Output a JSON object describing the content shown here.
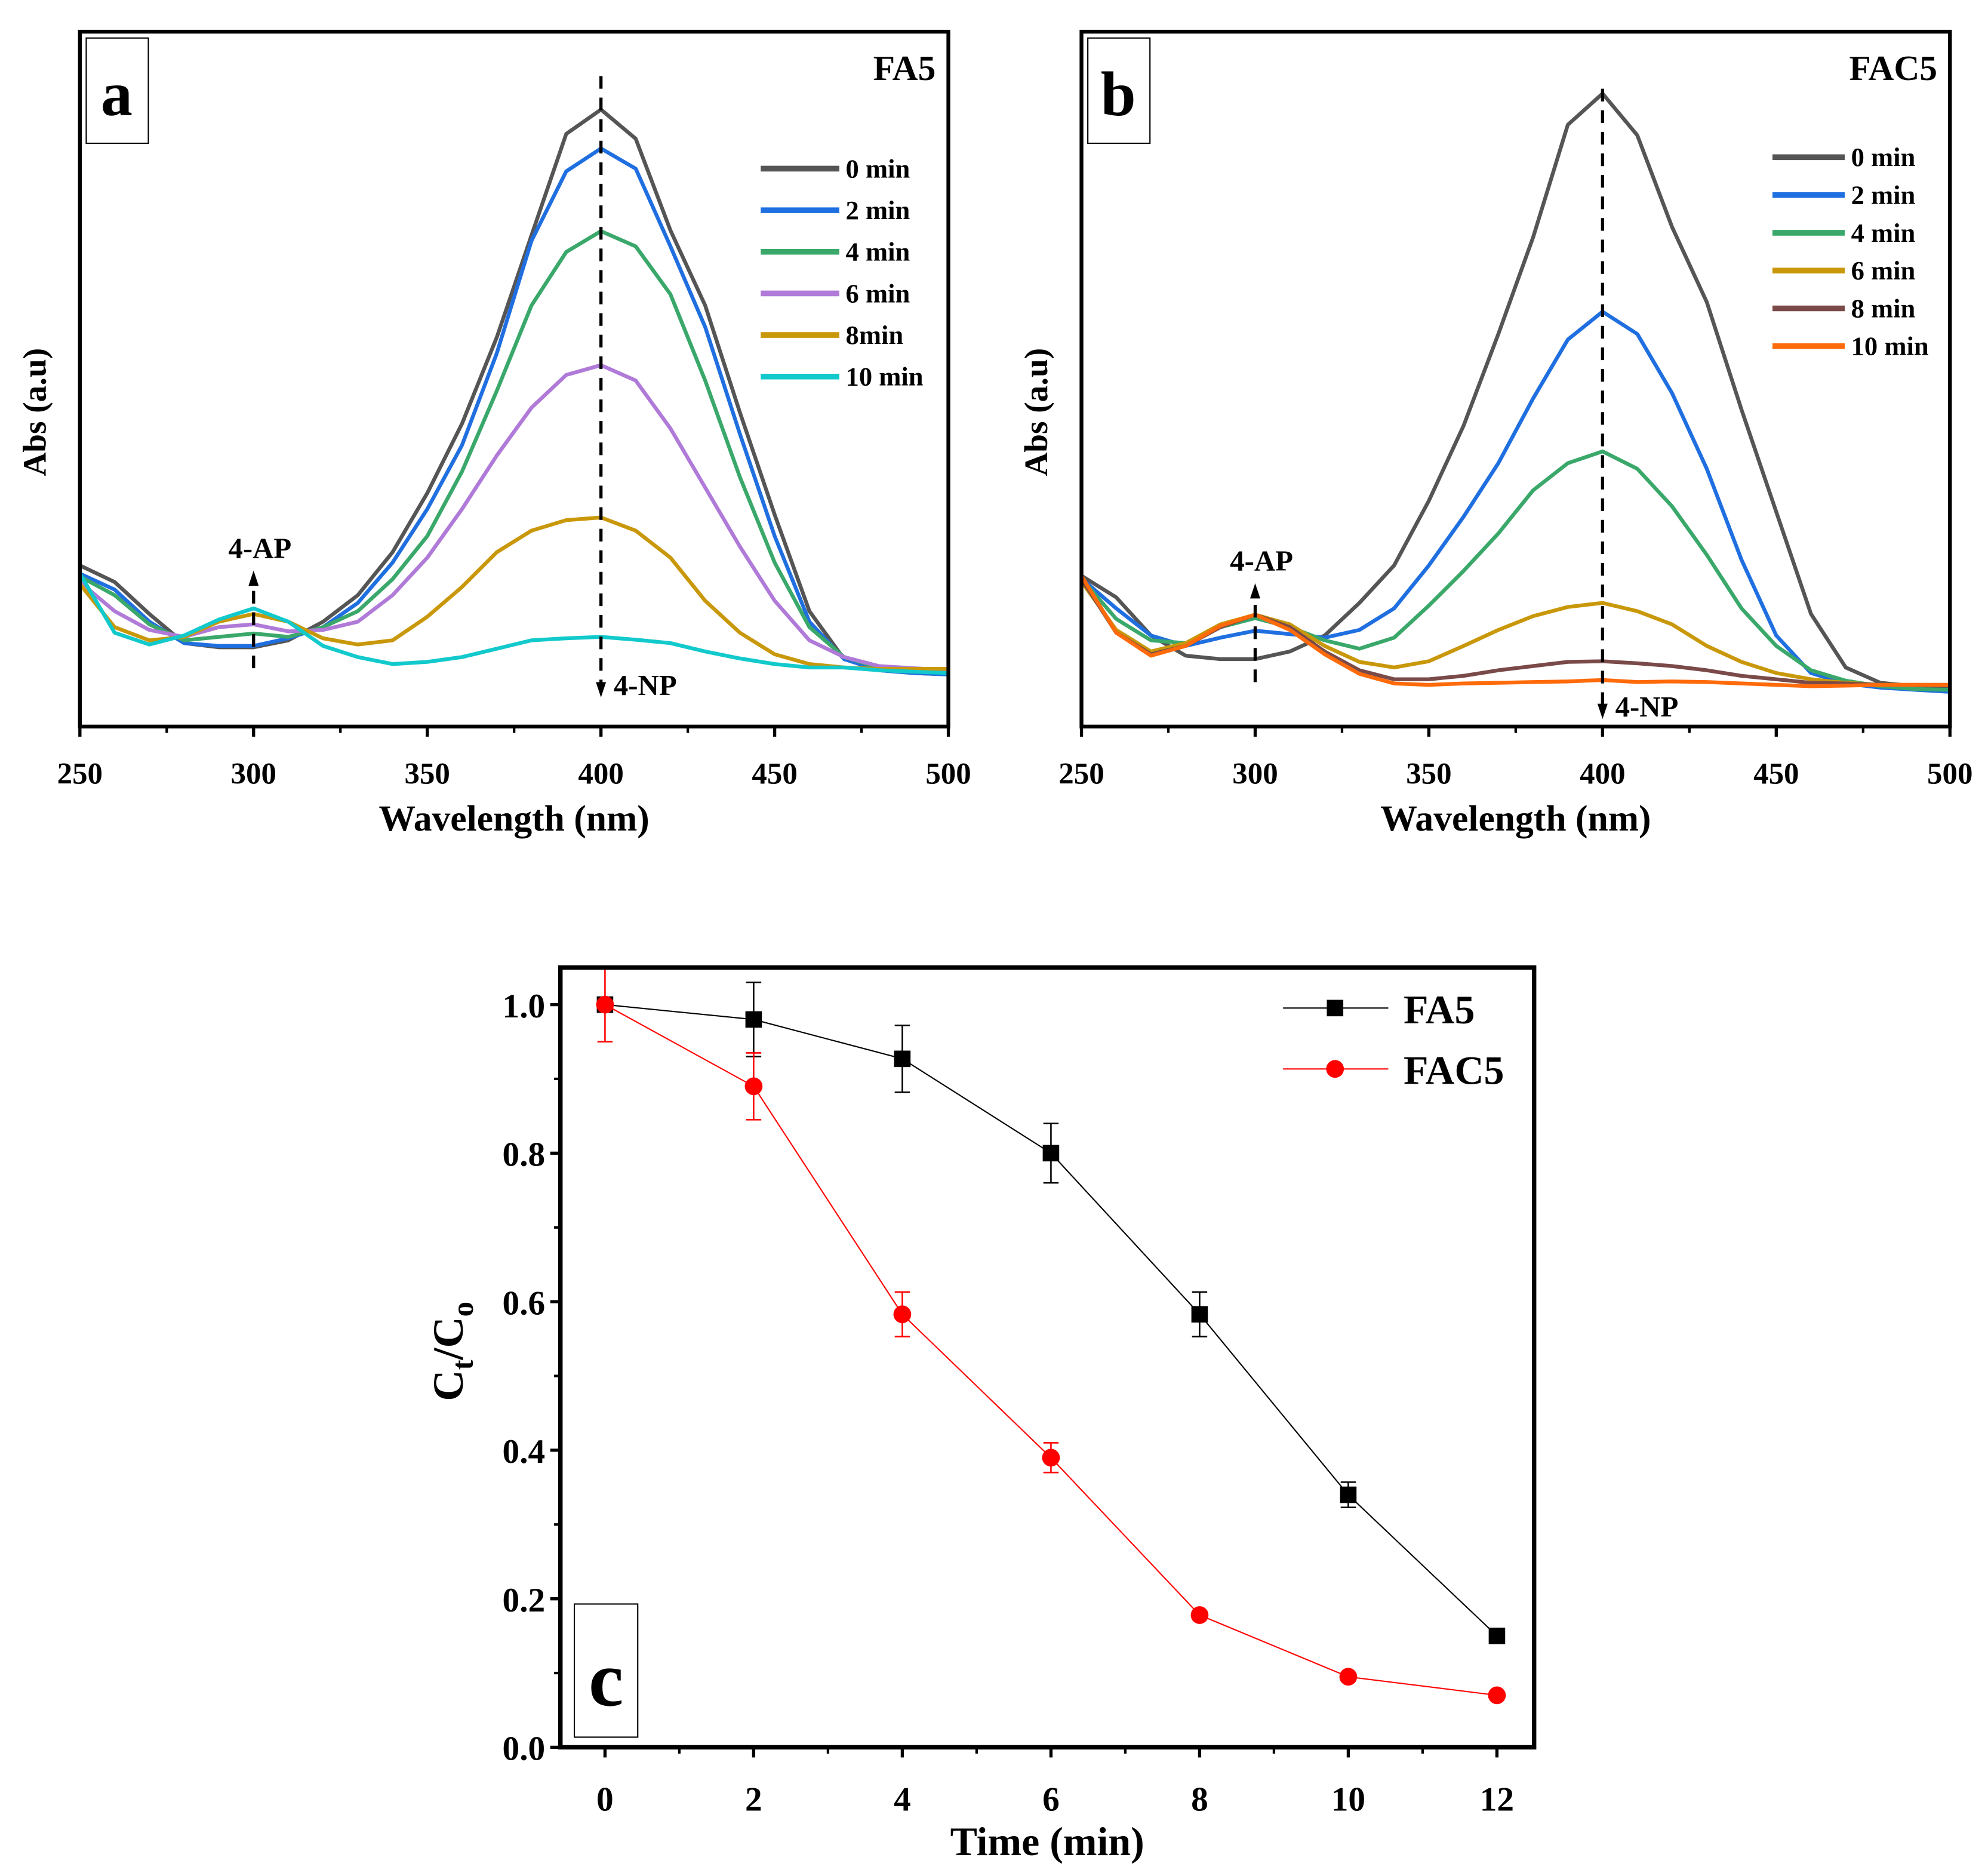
{
  "chart_data": [
    {
      "type": "line",
      "panel_label": "a",
      "sample_label": "FA5",
      "xlabel": "Wavelength (nm)",
      "ylabel": "Abs (a.u)",
      "xlim": [
        250,
        500
      ],
      "xticks": [
        250,
        300,
        350,
        400,
        450,
        500
      ],
      "ylim": [
        0,
        1
      ],
      "y_ticks_shown": false,
      "grid": false,
      "legend_position": "top-right",
      "annotations": {
        "ap": "4-AP",
        "np": "4-NP"
      },
      "x": [
        250,
        260,
        270,
        280,
        290,
        300,
        310,
        320,
        330,
        340,
        350,
        360,
        370,
        380,
        390,
        400,
        410,
        420,
        430,
        440,
        450,
        460,
        470,
        480,
        490,
        500
      ],
      "series": [
        {
          "name": "0 min",
          "color": "#555555",
          "values": [
            0.232,
            0.208,
            0.162,
            0.12,
            0.114,
            0.114,
            0.124,
            0.151,
            0.189,
            0.251,
            0.336,
            0.436,
            0.56,
            0.707,
            0.853,
            0.888,
            0.846,
            0.714,
            0.606,
            0.452,
            0.305,
            0.166,
            0.097,
            0.081,
            0.077,
            0.075
          ]
        },
        {
          "name": "2 min",
          "color": "#1f6fe0",
          "values": [
            0.22,
            0.197,
            0.151,
            0.12,
            0.116,
            0.116,
            0.127,
            0.143,
            0.178,
            0.236,
            0.313,
            0.405,
            0.537,
            0.699,
            0.799,
            0.832,
            0.803,
            0.691,
            0.575,
            0.421,
            0.274,
            0.151,
            0.097,
            0.081,
            0.077,
            0.075
          ]
        },
        {
          "name": "4 min",
          "color": "#3aa86a",
          "values": [
            0.216,
            0.189,
            0.147,
            0.124,
            0.129,
            0.134,
            0.129,
            0.143,
            0.166,
            0.212,
            0.274,
            0.367,
            0.483,
            0.606,
            0.683,
            0.713,
            0.691,
            0.622,
            0.498,
            0.359,
            0.236,
            0.143,
            0.1,
            0.085,
            0.081,
            0.077
          ]
        },
        {
          "name": "6 min",
          "color": "#b07ad8",
          "values": [
            0.208,
            0.166,
            0.139,
            0.129,
            0.143,
            0.147,
            0.137,
            0.139,
            0.151,
            0.189,
            0.243,
            0.313,
            0.39,
            0.459,
            0.506,
            0.52,
            0.498,
            0.429,
            0.344,
            0.259,
            0.181,
            0.124,
            0.1,
            0.087,
            0.084,
            0.081
          ]
        },
        {
          "name": "8min",
          "color": "#c9980a",
          "values": [
            0.205,
            0.143,
            0.124,
            0.129,
            0.151,
            0.162,
            0.151,
            0.127,
            0.118,
            0.124,
            0.158,
            0.201,
            0.251,
            0.282,
            0.297,
            0.301,
            0.282,
            0.243,
            0.181,
            0.135,
            0.104,
            0.09,
            0.085,
            0.083,
            0.083,
            0.083
          ]
        },
        {
          "name": "10 min",
          "color": "#12c9cc",
          "values": [
            0.22,
            0.135,
            0.118,
            0.131,
            0.154,
            0.17,
            0.151,
            0.116,
            0.1,
            0.09,
            0.093,
            0.1,
            0.112,
            0.124,
            0.127,
            0.129,
            0.125,
            0.12,
            0.108,
            0.098,
            0.09,
            0.085,
            0.085,
            0.081,
            0.079,
            0.077
          ]
        }
      ]
    },
    {
      "type": "line",
      "panel_label": "b",
      "sample_label": "FAC5",
      "xlabel": "Wavelength (nm)",
      "ylabel": "Abs (a.u)",
      "xlim": [
        250,
        500
      ],
      "xticks": [
        250,
        300,
        350,
        400,
        450,
        500
      ],
      "ylim": [
        0,
        1
      ],
      "y_ticks_shown": false,
      "grid": false,
      "legend_position": "top-right",
      "annotations": {
        "ap": "4-AP",
        "np": "4-NP"
      },
      "x": [
        250,
        260,
        270,
        280,
        290,
        300,
        310,
        320,
        330,
        340,
        350,
        360,
        370,
        380,
        390,
        400,
        410,
        420,
        430,
        440,
        450,
        460,
        470,
        480,
        490,
        500
      ],
      "series": [
        {
          "name": "0 min",
          "color": "#555555",
          "values": [
            0.217,
            0.186,
            0.131,
            0.102,
            0.097,
            0.097,
            0.108,
            0.131,
            0.178,
            0.232,
            0.325,
            0.433,
            0.565,
            0.704,
            0.866,
            0.911,
            0.851,
            0.719,
            0.611,
            0.456,
            0.309,
            0.162,
            0.085,
            0.063,
            0.058,
            0.054
          ]
        },
        {
          "name": "2 min",
          "color": "#1f6fe0",
          "values": [
            0.213,
            0.17,
            0.131,
            0.116,
            0.128,
            0.138,
            0.133,
            0.128,
            0.139,
            0.17,
            0.232,
            0.302,
            0.379,
            0.472,
            0.557,
            0.597,
            0.565,
            0.48,
            0.371,
            0.24,
            0.131,
            0.077,
            0.062,
            0.056,
            0.053,
            0.05
          ]
        },
        {
          "name": "4 min",
          "color": "#3aa86a",
          "values": [
            0.213,
            0.155,
            0.124,
            0.12,
            0.143,
            0.156,
            0.143,
            0.124,
            0.112,
            0.128,
            0.174,
            0.224,
            0.278,
            0.34,
            0.379,
            0.396,
            0.371,
            0.317,
            0.247,
            0.17,
            0.116,
            0.081,
            0.066,
            0.058,
            0.054,
            0.053
          ]
        },
        {
          "name": "6 min",
          "color": "#c9980a",
          "values": [
            0.209,
            0.139,
            0.108,
            0.12,
            0.147,
            0.161,
            0.147,
            0.116,
            0.093,
            0.085,
            0.094,
            0.116,
            0.139,
            0.159,
            0.172,
            0.178,
            0.166,
            0.147,
            0.116,
            0.093,
            0.077,
            0.068,
            0.063,
            0.06,
            0.06,
            0.06
          ]
        },
        {
          "name": "8 min",
          "color": "#7a4a48",
          "values": [
            0.213,
            0.135,
            0.104,
            0.116,
            0.143,
            0.161,
            0.143,
            0.108,
            0.081,
            0.068,
            0.068,
            0.073,
            0.081,
            0.087,
            0.093,
            0.094,
            0.091,
            0.087,
            0.081,
            0.073,
            0.068,
            0.063,
            0.062,
            0.06,
            0.06,
            0.06
          ]
        },
        {
          "name": "10 min",
          "color": "#ff6a0a",
          "values": [
            0.217,
            0.135,
            0.102,
            0.116,
            0.145,
            0.161,
            0.139,
            0.104,
            0.076,
            0.062,
            0.06,
            0.062,
            0.063,
            0.064,
            0.065,
            0.067,
            0.064,
            0.065,
            0.064,
            0.062,
            0.06,
            0.058,
            0.059,
            0.06,
            0.06,
            0.06
          ]
        }
      ]
    },
    {
      "type": "line",
      "panel_label": "c",
      "xlabel": "Time (min)",
      "ylabel_main": "C",
      "ylabel_sub1": "t",
      "ylabel_slash": "/C",
      "ylabel_sub2": "o",
      "xlim": [
        -0.6,
        12.5
      ],
      "xticks": [
        0,
        2,
        4,
        6,
        8,
        10,
        12
      ],
      "ylim": [
        0,
        1.05
      ],
      "yticks": [
        "0.0",
        "0.2",
        "0.4",
        "0.6",
        "0.8",
        "1.0"
      ],
      "grid": false,
      "legend_position": "top-right",
      "x": [
        0,
        2,
        4,
        6,
        8,
        10,
        12
      ],
      "series": [
        {
          "name": "FA5",
          "color": "#000000",
          "marker": "square",
          "values": [
            1.0,
            0.98,
            0.927,
            0.8,
            0.583,
            0.34,
            0.15
          ],
          "errors": [
            0,
            0.05,
            0.045,
            0.04,
            0.03,
            0.017,
            0
          ]
        },
        {
          "name": "FAC5",
          "color": "#ff0000",
          "marker": "circle",
          "values": [
            1.0,
            0.89,
            0.583,
            0.39,
            0.178,
            0.095,
            0.07
          ],
          "errors": [
            0.05,
            0.045,
            0.03,
            0.02,
            0,
            0,
            0
          ]
        }
      ]
    }
  ]
}
